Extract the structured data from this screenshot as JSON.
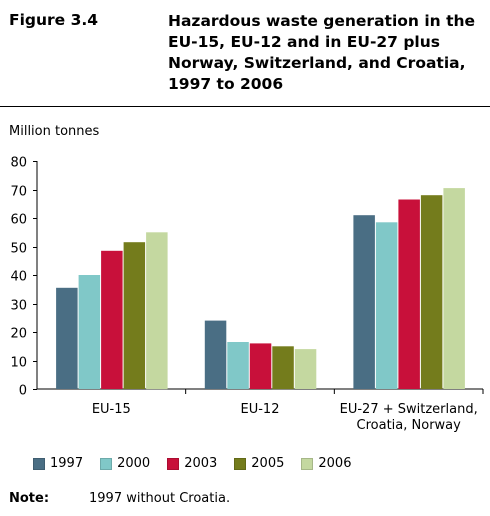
{
  "figure": {
    "label": "Figure 3.4",
    "title": "Hazardous waste generation in the EU-15, EU-12 and in EU-27 plus Norway, Switzerland, and Croatia, 1997 to 2006"
  },
  "note": {
    "label": "Note:",
    "text": "1997 without Croatia."
  },
  "chart_data": {
    "type": "bar",
    "title": "",
    "xlabel": "",
    "ylabel": "Million tonnes",
    "ylim": [
      0,
      80
    ],
    "yticks": [
      0,
      10,
      20,
      30,
      40,
      50,
      60,
      70,
      80
    ],
    "grid": false,
    "legend_position": "bottom",
    "categories": [
      [
        "EU-15"
      ],
      [
        "EU-12"
      ],
      [
        "EU-27 + Switzerland,",
        "Croatia, Norway"
      ]
    ],
    "series": [
      {
        "name": "1997",
        "color": "#4a6e84",
        "values": [
          35.5,
          24,
          61
        ]
      },
      {
        "name": "2000",
        "color": "#80c8c8",
        "values": [
          40,
          16.5,
          58.5
        ]
      },
      {
        "name": "2003",
        "color": "#c8103a",
        "values": [
          48.5,
          16,
          66.5
        ]
      },
      {
        "name": "2005",
        "color": "#747c1c",
        "values": [
          51.5,
          15,
          68
        ]
      },
      {
        "name": "2006",
        "color": "#c4d8a0",
        "values": [
          55,
          14,
          70.5
        ]
      }
    ]
  }
}
